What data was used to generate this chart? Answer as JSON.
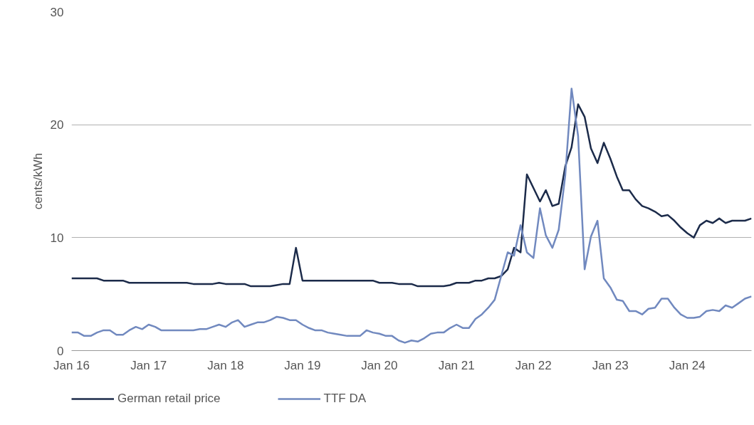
{
  "chart_data": {
    "type": "line",
    "ylabel": "cents/kWh",
    "x": [
      "2016-01",
      "2016-02",
      "2016-03",
      "2016-04",
      "2016-05",
      "2016-06",
      "2016-07",
      "2016-08",
      "2016-09",
      "2016-10",
      "2016-11",
      "2016-12",
      "2017-01",
      "2017-02",
      "2017-03",
      "2017-04",
      "2017-05",
      "2017-06",
      "2017-07",
      "2017-08",
      "2017-09",
      "2017-10",
      "2017-11",
      "2017-12",
      "2018-01",
      "2018-02",
      "2018-03",
      "2018-04",
      "2018-05",
      "2018-06",
      "2018-07",
      "2018-08",
      "2018-09",
      "2018-10",
      "2018-11",
      "2018-12",
      "2019-01",
      "2019-02",
      "2019-03",
      "2019-04",
      "2019-05",
      "2019-06",
      "2019-07",
      "2019-08",
      "2019-09",
      "2019-10",
      "2019-11",
      "2019-12",
      "2020-01",
      "2020-02",
      "2020-03",
      "2020-04",
      "2020-05",
      "2020-06",
      "2020-07",
      "2020-08",
      "2020-09",
      "2020-10",
      "2020-11",
      "2020-12",
      "2021-01",
      "2021-02",
      "2021-03",
      "2021-04",
      "2021-05",
      "2021-06",
      "2021-07",
      "2021-08",
      "2021-09",
      "2021-10",
      "2021-11",
      "2021-12",
      "2022-01",
      "2022-02",
      "2022-03",
      "2022-04",
      "2022-05",
      "2022-06",
      "2022-07",
      "2022-08",
      "2022-09",
      "2022-10",
      "2022-11",
      "2022-12",
      "2023-01",
      "2023-02",
      "2023-03",
      "2023-04",
      "2023-05",
      "2023-06",
      "2023-07",
      "2023-08",
      "2023-09",
      "2023-10",
      "2023-11",
      "2023-12",
      "2024-01",
      "2024-02",
      "2024-03",
      "2024-04",
      "2024-05",
      "2024-06",
      "2024-07",
      "2024-08",
      "2024-09",
      "2024-10",
      "2024-11"
    ],
    "series": [
      {
        "name": "German retail price",
        "color": "#1c2b4a",
        "values": [
          6.4,
          6.4,
          6.4,
          6.4,
          6.4,
          6.2,
          6.2,
          6.2,
          6.2,
          6.0,
          6.0,
          6.0,
          6.0,
          6.0,
          6.0,
          6.0,
          6.0,
          6.0,
          6.0,
          5.9,
          5.9,
          5.9,
          5.9,
          6.0,
          5.9,
          5.9,
          5.9,
          5.9,
          5.7,
          5.7,
          5.7,
          5.7,
          5.8,
          5.9,
          5.9,
          9.1,
          6.2,
          6.2,
          6.2,
          6.2,
          6.2,
          6.2,
          6.2,
          6.2,
          6.2,
          6.2,
          6.2,
          6.2,
          6.0,
          6.0,
          6.0,
          5.9,
          5.9,
          5.9,
          5.7,
          5.7,
          5.7,
          5.7,
          5.7,
          5.8,
          6.0,
          6.0,
          6.0,
          6.2,
          6.2,
          6.4,
          6.4,
          6.6,
          7.2,
          9.1,
          8.7,
          15.6,
          14.4,
          13.2,
          14.2,
          12.8,
          13.0,
          16.3,
          18.0,
          21.8,
          20.7,
          17.9,
          16.6,
          18.4,
          17.0,
          15.4,
          14.2,
          14.2,
          13.4,
          12.8,
          12.6,
          12.3,
          11.9,
          12.0,
          11.5,
          10.9,
          10.4,
          10.0,
          11.1,
          11.5,
          11.3,
          11.7,
          11.3,
          11.5,
          11.5,
          11.5,
          11.7
        ]
      },
      {
        "name": "TTF DA",
        "color": "#7189bf",
        "values": [
          1.6,
          1.6,
          1.3,
          1.3,
          1.6,
          1.8,
          1.8,
          1.4,
          1.4,
          1.8,
          2.1,
          1.9,
          2.3,
          2.1,
          1.8,
          1.8,
          1.8,
          1.8,
          1.8,
          1.8,
          1.9,
          1.9,
          2.1,
          2.3,
          2.1,
          2.5,
          2.7,
          2.1,
          2.3,
          2.5,
          2.5,
          2.7,
          3.0,
          2.9,
          2.7,
          2.7,
          2.3,
          2.0,
          1.8,
          1.8,
          1.6,
          1.5,
          1.4,
          1.3,
          1.3,
          1.3,
          1.8,
          1.6,
          1.5,
          1.3,
          1.3,
          0.9,
          0.7,
          0.9,
          0.8,
          1.1,
          1.5,
          1.6,
          1.6,
          2.0,
          2.3,
          2.0,
          2.0,
          2.8,
          3.2,
          3.8,
          4.5,
          6.6,
          8.7,
          8.4,
          11.1,
          8.7,
          8.2,
          12.6,
          10.2,
          9.1,
          10.7,
          15.5,
          23.2,
          19.0,
          7.2,
          10.1,
          11.5,
          6.4,
          5.6,
          4.5,
          4.4,
          3.5,
          3.5,
          3.2,
          3.7,
          3.8,
          4.6,
          4.6,
          3.8,
          3.2,
          2.9,
          2.9,
          3.0,
          3.5,
          3.6,
          3.5,
          4.0,
          3.8,
          4.2,
          4.6,
          4.8
        ]
      }
    ],
    "xlim": [
      "2016-01",
      "2024-11"
    ],
    "xticks": [
      {
        "value": "2016-01",
        "label": "Jan 16"
      },
      {
        "value": "2017-01",
        "label": "Jan 17"
      },
      {
        "value": "2018-01",
        "label": "Jan 18"
      },
      {
        "value": "2019-01",
        "label": "Jan 19"
      },
      {
        "value": "2020-01",
        "label": "Jan 20"
      },
      {
        "value": "2021-01",
        "label": "Jan 21"
      },
      {
        "value": "2022-01",
        "label": "Jan 22"
      },
      {
        "value": "2023-01",
        "label": "Jan 23"
      },
      {
        "value": "2024-01",
        "label": "Jan 24"
      }
    ],
    "ylim": [
      0,
      30
    ],
    "yticks": [
      0,
      10,
      20,
      30
    ],
    "grid": "y",
    "legend": "bottom",
    "marker": "none",
    "line_style": "solid"
  }
}
